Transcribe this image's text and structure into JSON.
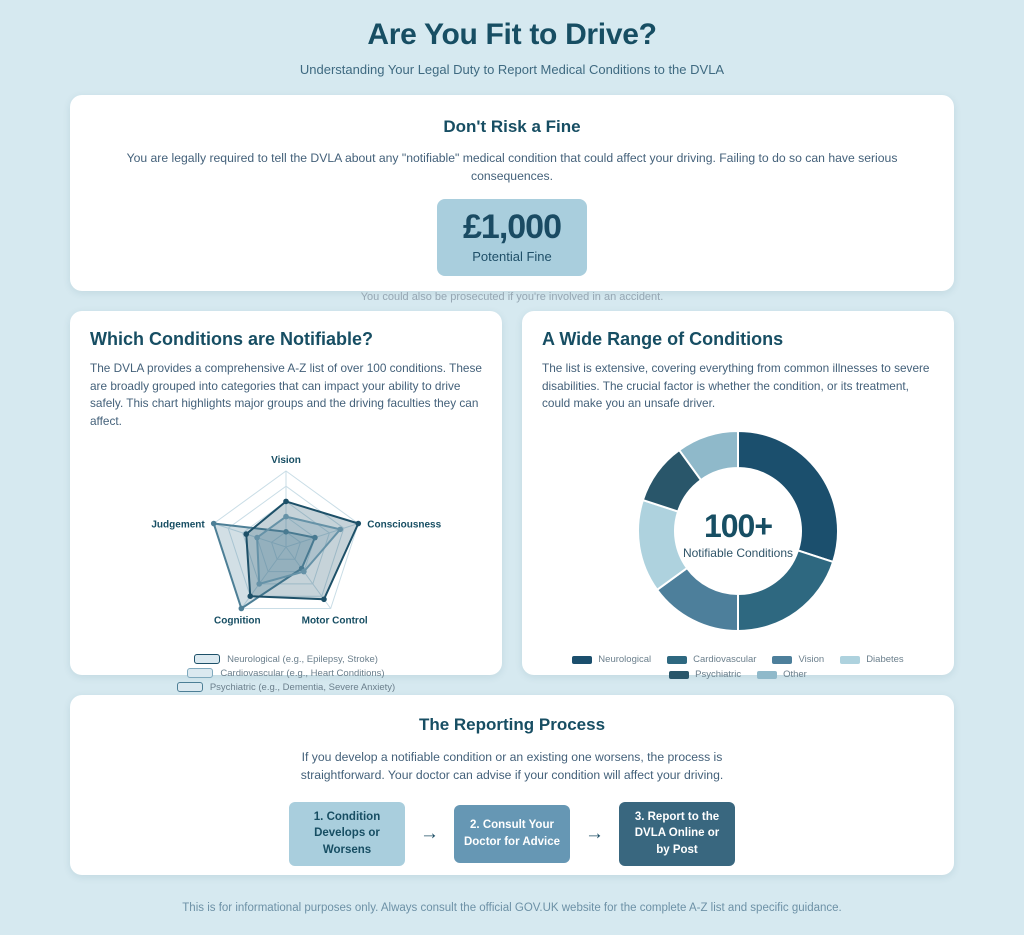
{
  "page": {
    "title": "Are You Fit to Drive?",
    "subtitle": "Understanding Your Legal Duty to Report Medical Conditions to the DVLA",
    "footer": "This is for informational purposes only. Always consult the official GOV.UK website for the complete A-Z list and specific guidance."
  },
  "fine_card": {
    "heading": "Don't Risk a Fine",
    "body": "You are legally required to tell the DVLA about any \"notifiable\" medical condition that could affect your driving. Failing to do so can have serious consequences.",
    "amount": "£1,000",
    "amount_label": "Potential Fine",
    "note": "You could also be prosecuted if you're involved in an accident."
  },
  "radar_card": {
    "heading": "Which Conditions are Notifiable?",
    "body": "The DVLA provides a comprehensive A-Z list of over 100 conditions. These are broadly grouped into categories that can impact your ability to drive safely. This chart highlights major groups and the driving faculties they can affect."
  },
  "donut_card": {
    "heading": "A Wide Range of Conditions",
    "body": "The list is extensive, covering everything from common illnesses to severe disabilities. The crucial factor is whether the condition, or its treatment, could make you an unsafe driver."
  },
  "process_card": {
    "heading": "The Reporting Process",
    "body": "If you develop a notifiable condition or an existing one worsens, the process is straightforward. Your doctor can advise if your condition will affect your driving.",
    "arrow": "→",
    "steps": [
      {
        "label": "1. Condition Develops or Worsens",
        "bg": "#a9cedd",
        "fg": "#174e63"
      },
      {
        "label": "2. Consult Your Doctor for Advice",
        "bg": "#6697b4",
        "fg": "#ffffff"
      },
      {
        "label": "3. Report to the DVLA Online or by Post",
        "bg": "#39677f",
        "fg": "#ffffff"
      }
    ]
  },
  "chart_data": [
    {
      "type": "radar",
      "title": "Driving faculties affected by condition groups",
      "categories": [
        "Vision",
        "Consciousness",
        "Motor Control",
        "Cognition",
        "Judgement"
      ],
      "rmax": 10,
      "grid": true,
      "legend_position": "bottom",
      "series": [
        {
          "name": "Neurological (e.g., Epilepsy, Stroke)",
          "values": [
            6,
            10,
            8.5,
            8,
            5.5
          ],
          "color": "#1d5068"
        },
        {
          "name": "Cardiovascular (e.g., Heart Conditions)",
          "values": [
            4,
            7.5,
            4,
            6,
            4
          ],
          "color": "#7fa9bd"
        },
        {
          "name": "Psychiatric (e.g., Dementia, Severe Anxiety)",
          "values": [
            2,
            4,
            3.5,
            10,
            10
          ],
          "color": "#4d7f96"
        }
      ]
    },
    {
      "type": "pie",
      "title": "Breakdown of notifiable condition groups",
      "categories": [
        "Neurological",
        "Cardiovascular",
        "Vision",
        "Diabetes",
        "Psychiatric",
        "Other"
      ],
      "values": [
        30,
        20,
        15,
        15,
        10,
        10
      ],
      "colors": [
        "#1b4f6d",
        "#2e6880",
        "#4d7f9b",
        "#aed2de",
        "#29566a",
        "#8fb9ca"
      ],
      "center_value": "100+",
      "center_label": "Notifiable Conditions",
      "legend_position": "bottom"
    }
  ],
  "colors": {
    "background": "#d6e9f0",
    "card": "#ffffff",
    "heading": "#174e63",
    "body_text": "#44617a",
    "fine_box_bg": "#a9cedd",
    "muted_text": "#95a6b2",
    "footer_text": "#6d91a6",
    "radar_grid": "#c9dde6"
  }
}
